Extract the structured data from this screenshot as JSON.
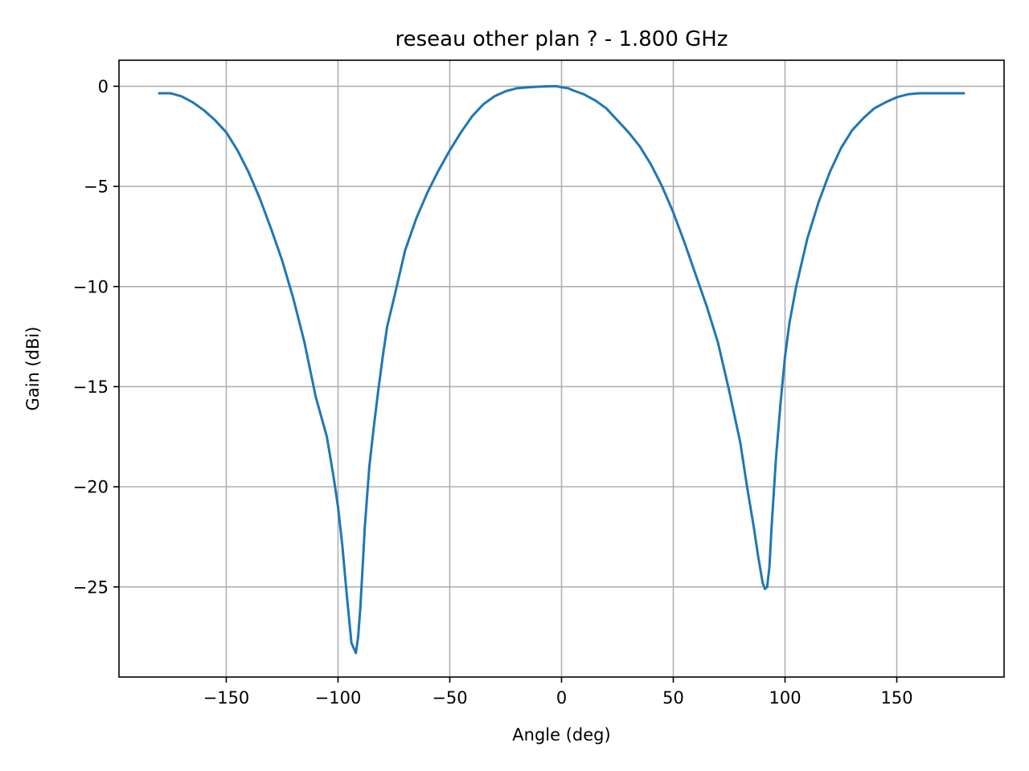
{
  "chart_data": {
    "type": "line",
    "title": "reseau other plan ? - 1.800 GHz",
    "xlabel": "Angle (deg)",
    "ylabel": "Gain (dBi)",
    "xlim": [
      -198,
      198
    ],
    "ylim": [
      -29.5,
      1.3
    ],
    "xticks": [
      -150,
      -100,
      -50,
      0,
      50,
      100,
      150
    ],
    "yticks": [
      0,
      -5,
      -10,
      -15,
      -20,
      -25
    ],
    "xtick_labels": [
      "−150",
      "−100",
      "−50",
      "0",
      "50",
      "100",
      "150"
    ],
    "ytick_labels": [
      "0",
      "−5",
      "−10",
      "−15",
      "−20",
      "−25"
    ],
    "grid": true,
    "series": [
      {
        "color": "#1f77b4",
        "x": [
          -180,
          -175,
          -170,
          -165,
          -160,
          -155,
          -150,
          -145,
          -140,
          -135,
          -130,
          -125,
          -120,
          -115,
          -110,
          -105,
          -102,
          -100,
          -98,
          -96,
          -94,
          -92,
          -91,
          -90,
          -89,
          -88,
          -86,
          -84,
          -82,
          -80,
          -78,
          -75,
          -70,
          -65,
          -60,
          -55,
          -50,
          -45,
          -40,
          -35,
          -30,
          -25,
          -20,
          -15,
          -10,
          -5,
          -2,
          0,
          3,
          5,
          10,
          15,
          20,
          25,
          30,
          35,
          40,
          45,
          50,
          55,
          60,
          65,
          70,
          75,
          80,
          83,
          86,
          88,
          90,
          91,
          92,
          93,
          94,
          96,
          98,
          100,
          102,
          105,
          110,
          115,
          120,
          125,
          130,
          135,
          140,
          145,
          150,
          155,
          160,
          165,
          170,
          175,
          180
        ],
        "y": [
          -0.35,
          -0.35,
          -0.5,
          -0.8,
          -1.2,
          -1.7,
          -2.3,
          -3.2,
          -4.3,
          -5.6,
          -7.1,
          -8.7,
          -10.6,
          -12.8,
          -15.5,
          -17.5,
          -19.5,
          -21.0,
          -23.0,
          -25.5,
          -27.8,
          -28.3,
          -27.5,
          -26.0,
          -24.0,
          -22.0,
          -19.0,
          -17.0,
          -15.2,
          -13.5,
          -12.0,
          -10.6,
          -8.2,
          -6.6,
          -5.3,
          -4.2,
          -3.2,
          -2.3,
          -1.5,
          -0.9,
          -0.5,
          -0.25,
          -0.1,
          -0.05,
          -0.02,
          0.0,
          0.0,
          -0.05,
          -0.1,
          -0.2,
          -0.4,
          -0.7,
          -1.1,
          -1.7,
          -2.3,
          -3.0,
          -3.9,
          -5.0,
          -6.3,
          -7.8,
          -9.4,
          -11.0,
          -12.8,
          -15.2,
          -17.8,
          -20.0,
          -22.0,
          -23.5,
          -24.8,
          -25.1,
          -25.0,
          -24.0,
          -22.0,
          -18.5,
          -15.8,
          -13.5,
          -11.8,
          -10.0,
          -7.6,
          -5.8,
          -4.3,
          -3.1,
          -2.2,
          -1.6,
          -1.1,
          -0.8,
          -0.55,
          -0.4,
          -0.35,
          -0.35,
          -0.35,
          -0.35,
          -0.35
        ]
      }
    ]
  }
}
